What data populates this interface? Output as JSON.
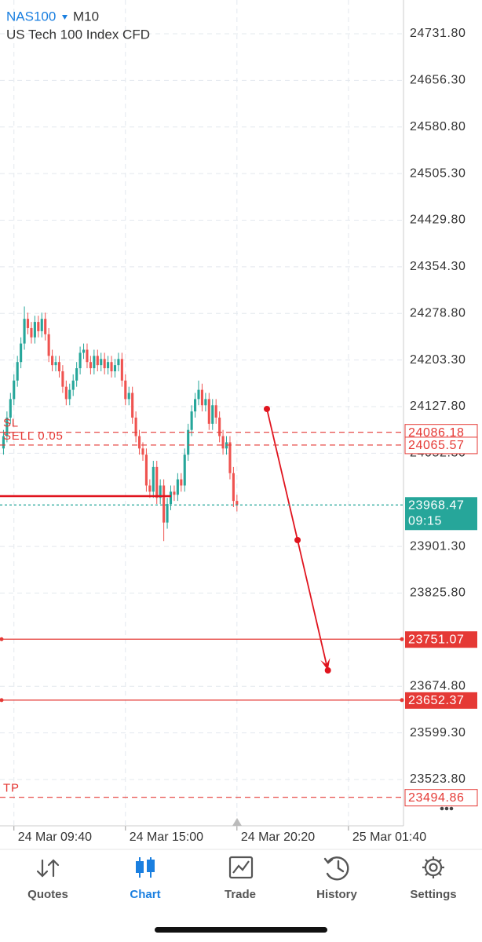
{
  "header": {
    "symbol": "NAS100",
    "timeframe": "M10",
    "description": "US Tech 100 Index CFD"
  },
  "chart_data": {
    "type": "candlestick",
    "up_color": "#26a69a",
    "down_color": "#ef5350",
    "x": [
      1,
      2,
      3,
      4,
      5,
      6,
      7,
      8,
      9,
      10,
      11,
      12,
      13,
      14,
      15,
      16,
      17,
      18,
      19,
      20,
      21,
      22,
      23,
      24,
      25,
      26,
      27,
      28,
      29,
      30,
      31,
      32,
      33,
      34,
      35,
      36,
      37,
      38,
      39,
      40,
      41,
      42,
      43,
      44,
      45,
      46,
      47,
      48,
      49,
      50,
      51,
      52,
      53,
      54,
      55,
      56,
      57,
      58,
      59,
      60,
      61,
      62,
      63,
      64,
      65,
      66,
      67,
      68
    ],
    "open": [
      24060,
      24080,
      24110,
      24140,
      24170,
      24200,
      24230,
      24270,
      24255,
      24240,
      24265,
      24250,
      24270,
      24245,
      24210,
      24195,
      24200,
      24185,
      24160,
      24140,
      24155,
      24170,
      24190,
      24215,
      24220,
      24200,
      24190,
      24210,
      24195,
      24205,
      24190,
      24200,
      24185,
      24195,
      24205,
      24170,
      24140,
      24150,
      24110,
      24080,
      24060,
      24050,
      24000,
      23990,
      24030,
      23980,
      24000,
      23940,
      23970,
      23990,
      23985,
      24010,
      24000,
      24050,
      24090,
      24120,
      24140,
      24155,
      24130,
      24140,
      24100,
      24130,
      24110,
      24080,
      24060,
      24070,
      24020,
      23975
    ],
    "high": [
      24090,
      24120,
      24150,
      24180,
      24210,
      24240,
      24290,
      24280,
      24265,
      24275,
      24275,
      24280,
      24280,
      24255,
      24220,
      24210,
      24210,
      24195,
      24170,
      24165,
      24180,
      24200,
      24225,
      24230,
      24230,
      24210,
      24220,
      24220,
      24215,
      24215,
      24210,
      24210,
      24205,
      24215,
      24215,
      24180,
      24160,
      24160,
      24120,
      24090,
      24070,
      24060,
      24010,
      24040,
      24040,
      24010,
      24010,
      23980,
      24000,
      24000,
      24020,
      24020,
      24060,
      24100,
      24130,
      24150,
      24170,
      24165,
      24150,
      24150,
      24140,
      24140,
      24120,
      24090,
      24080,
      24080,
      24030,
      23985
    ],
    "low": [
      24050,
      24070,
      24100,
      24130,
      24160,
      24190,
      24220,
      24245,
      24230,
      24230,
      24240,
      24240,
      24235,
      24200,
      24185,
      24185,
      24175,
      24150,
      24130,
      24130,
      24145,
      24160,
      24180,
      24205,
      24190,
      24180,
      24180,
      24185,
      24185,
      24180,
      24180,
      24175,
      24175,
      24185,
      24160,
      24130,
      24130,
      24100,
      24070,
      24050,
      24040,
      23990,
      23980,
      23980,
      23970,
      23970,
      23910,
      23930,
      23960,
      23975,
      23975,
      23990,
      23990,
      24040,
      24080,
      24110,
      24130,
      24120,
      24120,
      24090,
      24090,
      24100,
      24070,
      24050,
      24050,
      24010,
      23965,
      23958
    ],
    "close": [
      24080,
      24110,
      24140,
      24170,
      24200,
      24230,
      24270,
      24255,
      24240,
      24265,
      24250,
      24270,
      24245,
      24210,
      24195,
      24200,
      24185,
      24160,
      24140,
      24155,
      24170,
      24190,
      24215,
      24220,
      24200,
      24190,
      24210,
      24195,
      24205,
      24190,
      24200,
      24185,
      24195,
      24205,
      24170,
      24140,
      24150,
      24110,
      24080,
      24060,
      24050,
      24000,
      23990,
      24030,
      23980,
      24000,
      23940,
      23970,
      23990,
      23985,
      24010,
      24000,
      24050,
      24090,
      24120,
      24140,
      24155,
      24130,
      24140,
      24100,
      24130,
      24110,
      24080,
      24060,
      24070,
      24020,
      23975,
      23968.47
    ],
    "xlim": [
      0,
      115.8
    ],
    "xticks": [
      {
        "value": 4,
        "label": "24 Mar 09:40"
      },
      {
        "value": 36,
        "label": "24 Mar 15:00"
      },
      {
        "value": 68,
        "label": "24 Mar 20:20"
      },
      {
        "value": 100,
        "label": "25 Mar 01:40"
      }
    ],
    "ylim": [
      23448.7,
      24786.5
    ],
    "yticks": [
      {
        "value": 24731.8,
        "label": "24731.80"
      },
      {
        "value": 24656.3,
        "label": "24656.30"
      },
      {
        "value": 24580.8,
        "label": "24580.80"
      },
      {
        "value": 24505.3,
        "label": "24505.30"
      },
      {
        "value": 24429.8,
        "label": "24429.80"
      },
      {
        "value": 24354.3,
        "label": "24354.30"
      },
      {
        "value": 24278.8,
        "label": "24278.80"
      },
      {
        "value": 24203.3,
        "label": "24203.30"
      },
      {
        "value": 24127.8,
        "label": "24127.80"
      },
      {
        "value": 24052.3,
        "label": "24052.30"
      },
      {
        "value": 23901.3,
        "label": "23901.30"
      },
      {
        "value": 23825.8,
        "label": "23825.80"
      },
      {
        "value": 23674.8,
        "label": "23674.80"
      },
      {
        "value": 23599.3,
        "label": "23599.30"
      },
      {
        "value": 23523.8,
        "label": "23523.80"
      }
    ],
    "grid": true,
    "price_lines": [
      {
        "label": "SL",
        "value": 24086.18,
        "color": "#e53935",
        "style": "dashed"
      },
      {
        "label": "SELL 0.05",
        "value": 24065.57,
        "color": "#e53935",
        "style": "dashed"
      },
      {
        "value": 23968.47,
        "color": "#26a69a",
        "style": "dotted",
        "countdown": "09:15"
      },
      {
        "value": 23751.07,
        "color": "#e53935",
        "style": "solid"
      },
      {
        "value": 23652.37,
        "color": "#e53935",
        "style": "solid"
      },
      {
        "label": "TP",
        "value": 23494.86,
        "color": "#e53935",
        "style": "dashed"
      }
    ],
    "drawings": {
      "color": "#e0141e",
      "hline": {
        "value": 23982.8,
        "x": [
          0,
          49.1
        ]
      },
      "arrow": {
        "x": [
          76.6,
          85.4,
          94.1
        ],
        "y": [
          24124,
          23911.6,
          23700.5
        ]
      }
    }
  },
  "tabs": [
    {
      "label": "Quotes"
    },
    {
      "label": "Chart"
    },
    {
      "label": "Trade"
    },
    {
      "label": "History"
    },
    {
      "label": "Settings"
    }
  ],
  "active_tab": "Chart"
}
